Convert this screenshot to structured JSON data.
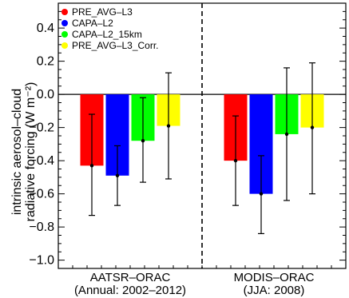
{
  "chart_data": {
    "type": "bar",
    "title": "",
    "ylabel_lines": [
      "intrinsic aerosol–cloud",
      "radiative forcing (W m⁻²)"
    ],
    "ylim": [
      -1.05,
      0.55
    ],
    "yticks": [
      0.4,
      0.2,
      0.0,
      -0.2,
      -0.4,
      -0.6,
      -0.8,
      -1.0
    ],
    "ytick_labels": [
      "0.4",
      "0.2",
      "0.0",
      "−0.2",
      "−0.4",
      "−0.6",
      "−0.8",
      "−1.0"
    ],
    "groups": [
      {
        "name": "AATSR–ORAC",
        "subtitle": "(Annual: 2002–2012)"
      },
      {
        "name": "MODIS–ORAC",
        "subtitle": "(JJA: 2008)"
      }
    ],
    "series": [
      {
        "name": "PRE_AVG–L3",
        "color": "#ff0000",
        "values": [
          -0.43,
          -0.4
        ],
        "err_low": [
          -0.73,
          -0.67
        ],
        "err_high": [
          -0.12,
          -0.13
        ]
      },
      {
        "name": "CAPA–L2",
        "color": "#0000ff",
        "values": [
          -0.49,
          -0.6
        ],
        "err_low": [
          -0.67,
          -0.84
        ],
        "err_high": [
          -0.31,
          -0.37
        ]
      },
      {
        "name": "CAPA–L2_15km",
        "color": "#00ff00",
        "values": [
          -0.28,
          -0.24
        ],
        "err_low": [
          -0.53,
          -0.64
        ],
        "err_high": [
          -0.02,
          0.16
        ]
      },
      {
        "name": "PRE_AVG–L3_Corr.",
        "color": "#ffff00",
        "values": [
          -0.19,
          -0.2
        ],
        "err_low": [
          -0.51,
          -0.6
        ],
        "err_high": [
          0.13,
          0.19
        ]
      }
    ],
    "zero_line": true,
    "group_separator": "dashed",
    "legend_position": "top-left"
  }
}
